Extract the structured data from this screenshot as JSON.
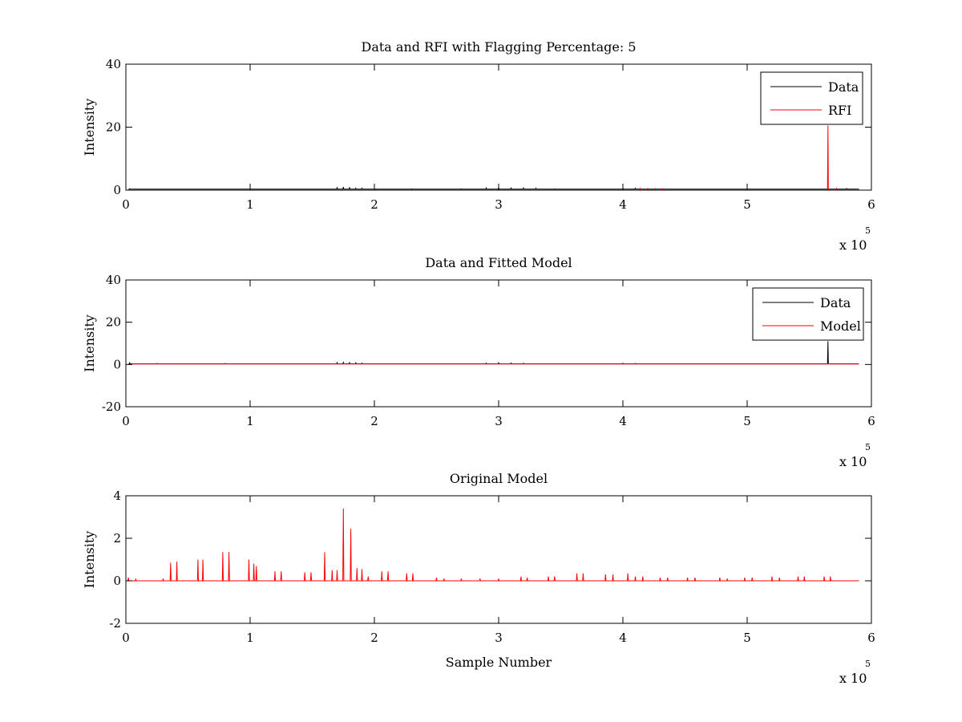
{
  "chart_data": [
    {
      "type": "line",
      "title": "Data and RFI with Flagging Percentage: 5",
      "xlabel": "",
      "ylabel": "Intensity",
      "xlim": [
        0,
        600000
      ],
      "ylim": [
        0,
        40
      ],
      "x_ticks": [
        0,
        1,
        2,
        3,
        4,
        5,
        6
      ],
      "y_ticks": [
        0,
        20,
        40
      ],
      "x_multiplier": "x 10",
      "x_multiplier_exponent": "5",
      "legend": "top-right",
      "series": [
        {
          "name": "Data",
          "color": "#000000",
          "baseline": 0.3,
          "spikes": [
            {
              "x": 3000,
              "y": 0.4
            },
            {
              "x": 20000,
              "y": 0.3
            },
            {
              "x": 60000,
              "y": 0.3
            },
            {
              "x": 120000,
              "y": 0.3
            },
            {
              "x": 170000,
              "y": 0.8
            },
            {
              "x": 175000,
              "y": 1.0
            },
            {
              "x": 180000,
              "y": 0.8
            },
            {
              "x": 185000,
              "y": 0.6
            },
            {
              "x": 190000,
              "y": 0.6
            },
            {
              "x": 230000,
              "y": 0.4
            },
            {
              "x": 270000,
              "y": 0.4
            },
            {
              "x": 290000,
              "y": 0.7
            },
            {
              "x": 300000,
              "y": 0.8
            },
            {
              "x": 310000,
              "y": 0.7
            },
            {
              "x": 320000,
              "y": 0.7
            },
            {
              "x": 330000,
              "y": 0.6
            },
            {
              "x": 345000,
              "y": 0.4
            },
            {
              "x": 400000,
              "y": 0.5
            },
            {
              "x": 410000,
              "y": 0.6
            },
            {
              "x": 580000,
              "y": 0.5
            }
          ]
        },
        {
          "name": "RFI",
          "color": "#ff0000",
          "baseline": 0,
          "spikes": [
            {
              "x": 414000,
              "y": 0.5
            },
            {
              "x": 420000,
              "y": 0.6
            },
            {
              "x": 426000,
              "y": 0.6
            },
            {
              "x": 432000,
              "y": 0.4
            },
            {
              "x": 565000,
              "y": 20.5
            },
            {
              "x": 572000,
              "y": 0.5
            }
          ]
        }
      ]
    },
    {
      "type": "line",
      "title": "Data and Fitted Model",
      "xlabel": "",
      "ylabel": "Intensity",
      "xlim": [
        0,
        600000
      ],
      "ylim": [
        -20,
        40
      ],
      "x_ticks": [
        0,
        1,
        2,
        3,
        4,
        5,
        6
      ],
      "y_ticks": [
        -20,
        0,
        20,
        40
      ],
      "x_multiplier": "x 10",
      "x_multiplier_exponent": "5",
      "legend": "top-right",
      "series": [
        {
          "name": "Data",
          "color": "#000000",
          "baseline": 0.3,
          "spikes": [
            {
              "x": 3000,
              "y": 0.8
            },
            {
              "x": 25000,
              "y": 0.5
            },
            {
              "x": 80000,
              "y": 0.5
            },
            {
              "x": 170000,
              "y": 0.9
            },
            {
              "x": 175000,
              "y": 1.0
            },
            {
              "x": 180000,
              "y": 0.9
            },
            {
              "x": 185000,
              "y": 0.8
            },
            {
              "x": 190000,
              "y": 0.7
            },
            {
              "x": 290000,
              "y": 0.7
            },
            {
              "x": 300000,
              "y": 0.8
            },
            {
              "x": 310000,
              "y": 0.7
            },
            {
              "x": 320000,
              "y": 0.6
            },
            {
              "x": 400000,
              "y": 0.6
            },
            {
              "x": 410000,
              "y": 0.5
            },
            {
              "x": 565000,
              "y": 11.0
            }
          ]
        },
        {
          "name": "Model",
          "color": "#ff0000",
          "baseline": 0.2,
          "spikes": []
        }
      ]
    },
    {
      "type": "line",
      "title": "Original Model",
      "xlabel": "Sample Number",
      "ylabel": "Intensity",
      "xlim": [
        0,
        600000
      ],
      "ylim": [
        -2,
        4
      ],
      "x_ticks": [
        0,
        1,
        2,
        3,
        4,
        5,
        6
      ],
      "y_ticks": [
        -2,
        0,
        2,
        4
      ],
      "x_multiplier": "x 10",
      "x_multiplier_exponent": "5",
      "legend": "none",
      "series": [
        {
          "name": "",
          "color": "#ff0000",
          "baseline": 0,
          "spikes": [
            {
              "x": 2000,
              "y": 0.15
            },
            {
              "x": 8000,
              "y": 0.1
            },
            {
              "x": 30000,
              "y": 0.1
            },
            {
              "x": 36000,
              "y": 0.85
            },
            {
              "x": 41000,
              "y": 0.9
            },
            {
              "x": 58000,
              "y": 1.0
            },
            {
              "x": 62000,
              "y": 1.0
            },
            {
              "x": 78000,
              "y": 1.35
            },
            {
              "x": 83000,
              "y": 1.35
            },
            {
              "x": 99000,
              "y": 1.0
            },
            {
              "x": 103000,
              "y": 0.8
            },
            {
              "x": 105000,
              "y": 0.7
            },
            {
              "x": 120000,
              "y": 0.45
            },
            {
              "x": 125000,
              "y": 0.45
            },
            {
              "x": 144000,
              "y": 0.4
            },
            {
              "x": 149000,
              "y": 0.4
            },
            {
              "x": 160000,
              "y": 1.35
            },
            {
              "x": 166000,
              "y": 0.5
            },
            {
              "x": 170000,
              "y": 0.5
            },
            {
              "x": 175000,
              "y": 3.4
            },
            {
              "x": 181000,
              "y": 2.45
            },
            {
              "x": 186000,
              "y": 0.6
            },
            {
              "x": 190000,
              "y": 0.55
            },
            {
              "x": 195000,
              "y": 0.2
            },
            {
              "x": 206000,
              "y": 0.45
            },
            {
              "x": 211000,
              "y": 0.45
            },
            {
              "x": 226000,
              "y": 0.35
            },
            {
              "x": 231000,
              "y": 0.35
            },
            {
              "x": 250000,
              "y": 0.15
            },
            {
              "x": 256000,
              "y": 0.1
            },
            {
              "x": 270000,
              "y": 0.1
            },
            {
              "x": 285000,
              "y": 0.1
            },
            {
              "x": 300000,
              "y": 0.1
            },
            {
              "x": 318000,
              "y": 0.2
            },
            {
              "x": 323000,
              "y": 0.15
            },
            {
              "x": 340000,
              "y": 0.2
            },
            {
              "x": 345000,
              "y": 0.2
            },
            {
              "x": 363000,
              "y": 0.35
            },
            {
              "x": 368000,
              "y": 0.35
            },
            {
              "x": 386000,
              "y": 0.3
            },
            {
              "x": 392000,
              "y": 0.3
            },
            {
              "x": 404000,
              "y": 0.35
            },
            {
              "x": 410000,
              "y": 0.2
            },
            {
              "x": 416000,
              "y": 0.2
            },
            {
              "x": 430000,
              "y": 0.15
            },
            {
              "x": 436000,
              "y": 0.15
            },
            {
              "x": 452000,
              "y": 0.15
            },
            {
              "x": 458000,
              "y": 0.15
            },
            {
              "x": 478000,
              "y": 0.15
            },
            {
              "x": 484000,
              "y": 0.1
            },
            {
              "x": 498000,
              "y": 0.15
            },
            {
              "x": 504000,
              "y": 0.15
            },
            {
              "x": 520000,
              "y": 0.2
            },
            {
              "x": 526000,
              "y": 0.15
            },
            {
              "x": 541000,
              "y": 0.2
            },
            {
              "x": 546000,
              "y": 0.2
            },
            {
              "x": 562000,
              "y": 0.2
            },
            {
              "x": 567000,
              "y": 0.2
            }
          ]
        }
      ]
    }
  ]
}
